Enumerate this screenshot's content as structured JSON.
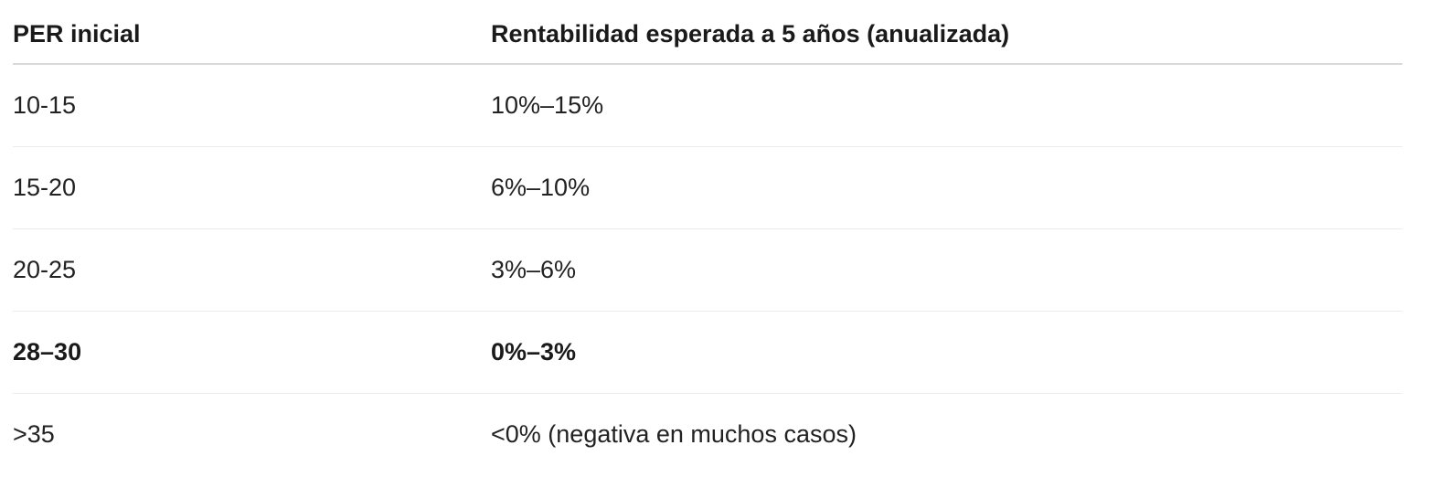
{
  "table": {
    "headers": [
      "PER inicial",
      "Rentabilidad esperada a 5 años (anualizada)"
    ],
    "rows": [
      {
        "per": "10-15",
        "return": "10%–15%",
        "bold": false
      },
      {
        "per": "15-20",
        "return": "6%–10%",
        "bold": false
      },
      {
        "per": "20-25",
        "return": "3%–6%",
        "bold": false
      },
      {
        "per": "28–30",
        "return": "0%–3%",
        "bold": true
      },
      {
        "per": ">35",
        "return": "<0% (negativa en muchos casos)",
        "bold": false
      }
    ]
  }
}
